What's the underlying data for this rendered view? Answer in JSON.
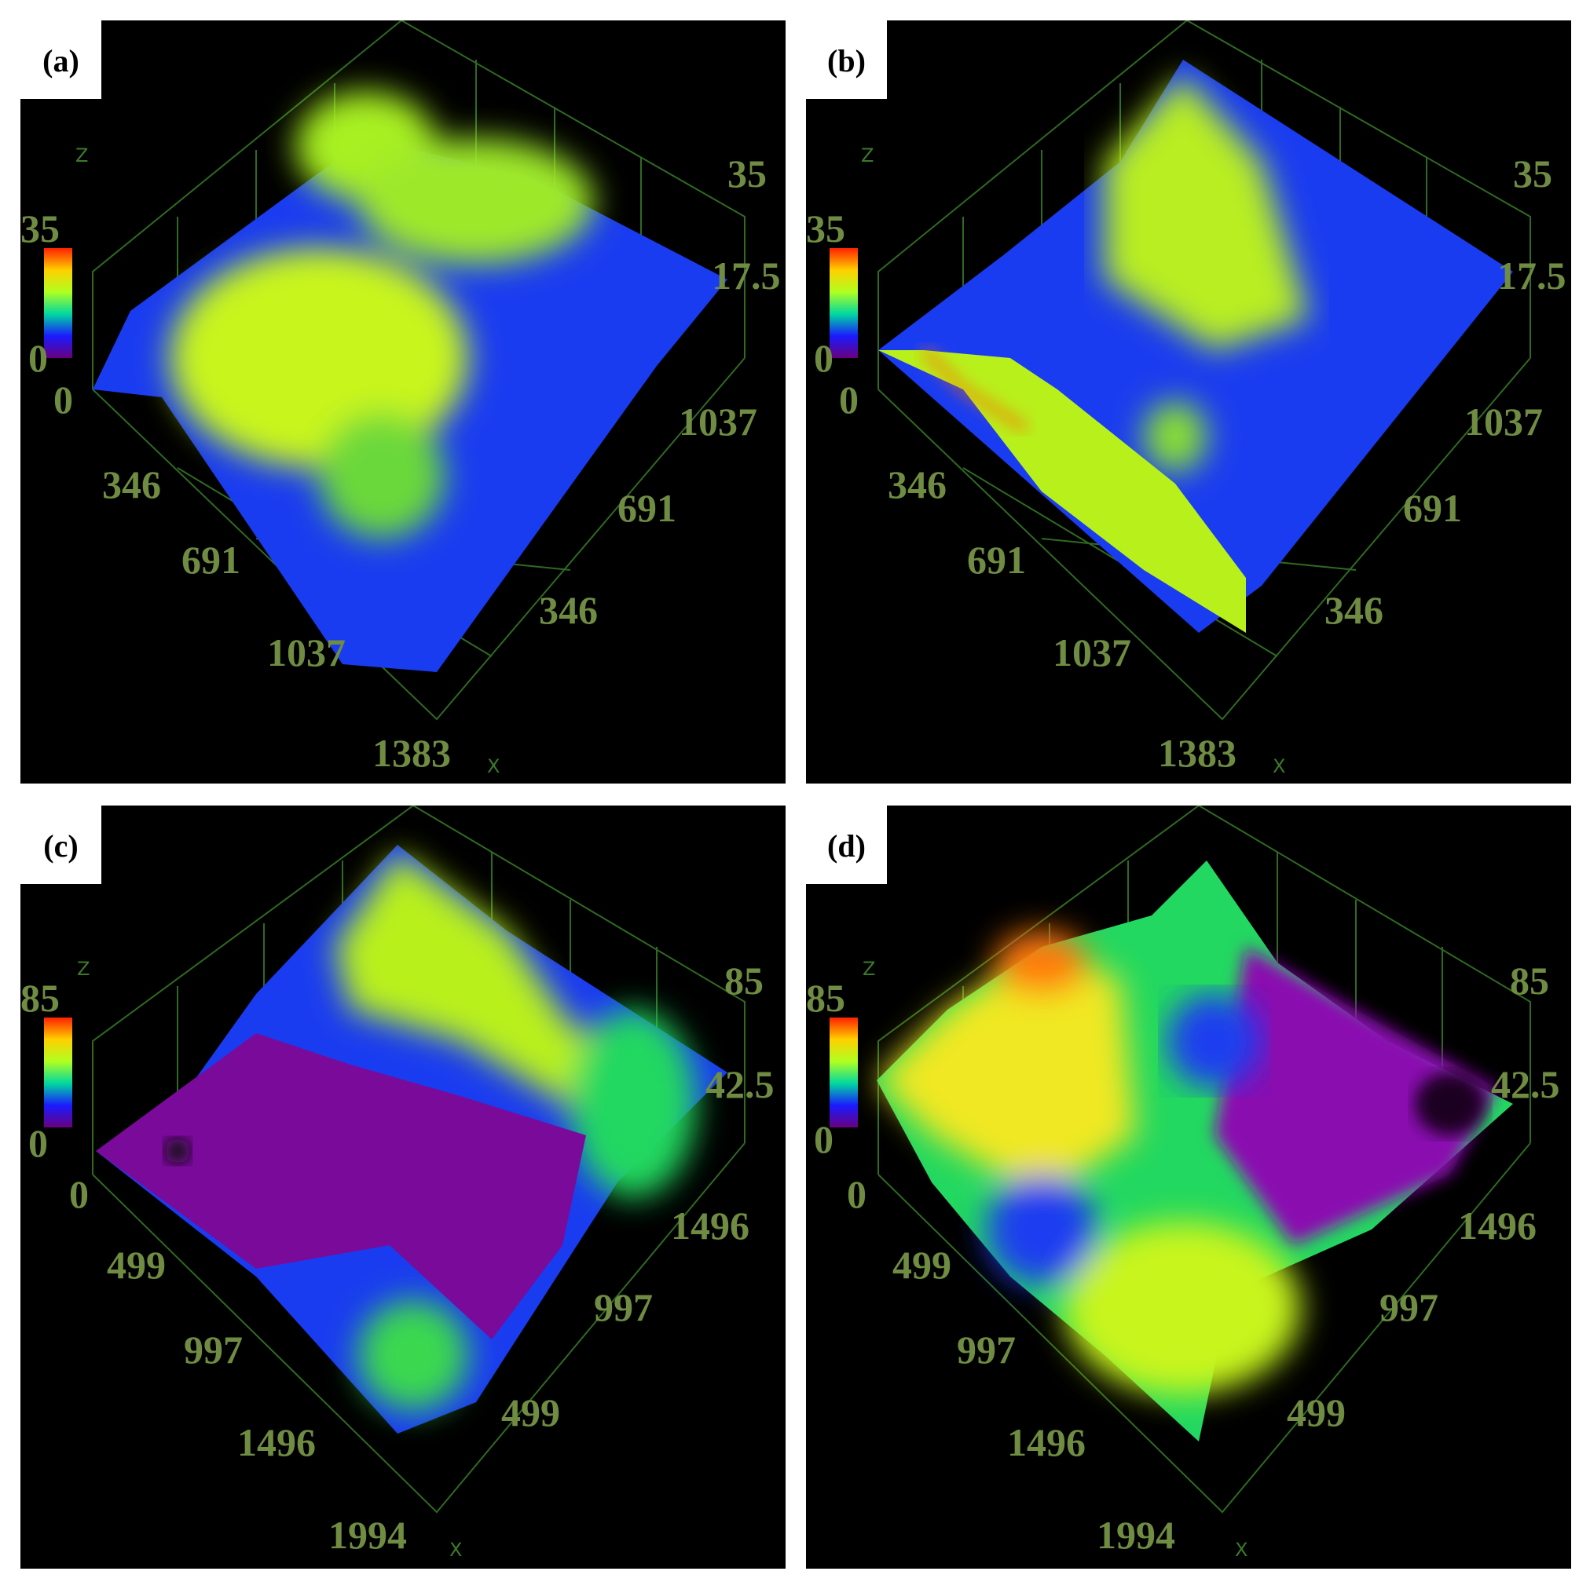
{
  "panels": [
    {
      "label": "(a)",
      "colorbar": {
        "max": "35",
        "min": "0"
      },
      "z_ticks": [
        "35",
        "17.5"
      ],
      "z_origin": "0",
      "y_ticks": [
        "346",
        "691",
        "1037",
        "1383"
      ],
      "x_ticks": [
        "1037",
        "691",
        "346"
      ],
      "axis_z": "Z",
      "axis_x": "X"
    },
    {
      "label": "(b)",
      "colorbar": {
        "max": "35",
        "min": "0"
      },
      "z_ticks": [
        "35",
        "17.5"
      ],
      "z_origin": "0",
      "y_ticks": [
        "346",
        "691",
        "1037",
        "1383"
      ],
      "x_ticks": [
        "1037",
        "691",
        "346"
      ],
      "axis_z": "Z",
      "axis_x": "X"
    },
    {
      "label": "(c)",
      "colorbar": {
        "max": "85",
        "min": "0"
      },
      "z_ticks": [
        "85",
        "42.5"
      ],
      "z_origin": "0",
      "y_ticks": [
        "499",
        "997",
        "1496",
        "1994"
      ],
      "x_ticks": [
        "1496",
        "997",
        "499"
      ],
      "axis_z": "Z",
      "axis_x": "X"
    },
    {
      "label": "(d)",
      "colorbar": {
        "max": "85",
        "min": "0"
      },
      "z_ticks": [
        "85",
        "42.5"
      ],
      "z_origin": "0",
      "y_ticks": [
        "499",
        "997",
        "1496",
        "1994"
      ],
      "x_ticks": [
        "1496",
        "997",
        "499"
      ],
      "axis_z": "Z",
      "axis_x": "X"
    }
  ],
  "colors": {
    "blue": "#1a3cf0",
    "green_yellow": "#c8f51a",
    "green": "#22d860",
    "purple": "#7a0a9a",
    "orange": "#ff7a10",
    "axis_text": "#6f8c42"
  }
}
